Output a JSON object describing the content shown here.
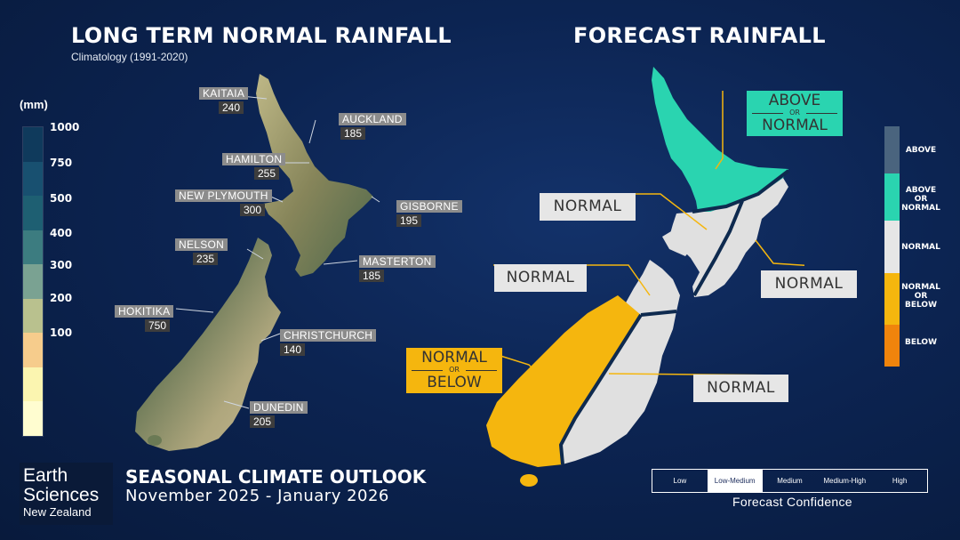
{
  "left_title": "LONG TERM NORMAL RAINFALL",
  "left_subtitle": "Climatology (1991-2020)",
  "right_title": "FORECAST RAINFALL",
  "scale": {
    "unit": "(mm)",
    "ticks": [
      "1000",
      "750",
      "500",
      "400",
      "300",
      "200",
      "100"
    ],
    "colors": [
      "#0f3a5c",
      "#185070",
      "#1e5f72",
      "#3c7c80",
      "#7aa292",
      "#b9c18e",
      "#f6cc8c",
      "#fbf5b0",
      "#fffdd0"
    ]
  },
  "cities": [
    {
      "name": "KAITAIA",
      "value": "240"
    },
    {
      "name": "AUCKLAND",
      "value": "185"
    },
    {
      "name": "HAMILTON",
      "value": "255"
    },
    {
      "name": "NEW PLYMOUTH",
      "value": "300"
    },
    {
      "name": "GISBORNE",
      "value": "195"
    },
    {
      "name": "NELSON",
      "value": "235"
    },
    {
      "name": "MASTERTON",
      "value": "185"
    },
    {
      "name": "HOKITIKA",
      "value": "750"
    },
    {
      "name": "CHRISTCHURCH",
      "value": "140"
    },
    {
      "name": "DUNEDIN",
      "value": "205"
    }
  ],
  "forecast_regions": {
    "north_of_north_island": {
      "line1": "ABOVE",
      "or": "OR",
      "line3": "NORMAL",
      "color": "#2ad4b0"
    },
    "west_of_north_island": {
      "label": "NORMAL"
    },
    "east_of_north_island": {
      "label": "NORMAL"
    },
    "north_of_south_island": {
      "label": "NORMAL"
    },
    "west_of_south_island": {
      "line1": "NORMAL",
      "or": "OR",
      "line3": "BELOW",
      "color": "#f5b60e"
    },
    "east_of_south_island": {
      "label": "NORMAL"
    }
  },
  "right_legend": [
    {
      "label": "ABOVE",
      "color": "#4a647e"
    },
    {
      "label": "ABOVE\nOR\nNORMAL",
      "color": "#2ad4b0"
    },
    {
      "label": "NORMAL",
      "color": "#e6e6e6"
    },
    {
      "label": "NORMAL\nOR\nBELOW",
      "color": "#f5b60e"
    },
    {
      "label": "BELOW",
      "color": "#f0840c"
    }
  ],
  "logo": {
    "line1": "Earth",
    "line2": "Sciences",
    "line3": "New Zealand"
  },
  "outlook_title": "SEASONAL CLIMATE OUTLOOK",
  "outlook_period": "November 2025 - January 2026",
  "confidence": {
    "levels": [
      "Low",
      "Low-Medium",
      "Medium",
      "Medium-High",
      "High"
    ],
    "selected": "Low-Medium",
    "caption": "Forecast Confidence"
  }
}
